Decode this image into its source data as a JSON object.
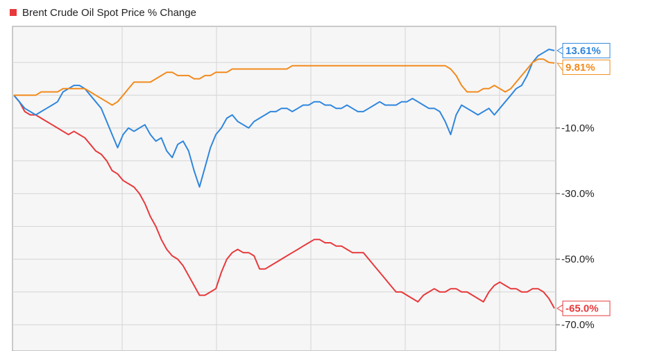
{
  "legend": [
    {
      "label": "Brent Crude Oil Spot Price % Change",
      "color": "#e8383b"
    }
  ],
  "chart_data": {
    "type": "line",
    "ylim": [
      -78,
      21
    ],
    "y_ticks": [
      -10,
      -30,
      -50,
      -70
    ],
    "y_tick_labels": [
      "-10.0%",
      "-30.0%",
      "-50.0%",
      "-70.0%"
    ],
    "grid": true,
    "legend_position": "top-left",
    "x_count": 100,
    "series": [
      {
        "name": "Brent Crude Oil Spot Price % Change",
        "color": "#e8383b",
        "end_label": "-65.0%",
        "values": [
          0,
          -2,
          -5,
          -6,
          -6,
          -7,
          -8,
          -9,
          -10,
          -11,
          -12,
          -11,
          -12,
          -13,
          -15,
          -17,
          -18,
          -20,
          -23,
          -24,
          -26,
          -27,
          -28,
          -30,
          -33,
          -37,
          -40,
          -44,
          -47,
          -49,
          -50,
          -52,
          -55,
          -58,
          -61,
          -61,
          -60,
          -59,
          -54,
          -50,
          -48,
          -47,
          -48,
          -48,
          -49,
          -53,
          -53,
          -52,
          -51,
          -50,
          -49,
          -48,
          -47,
          -46,
          -45,
          -44,
          -44,
          -45,
          -45,
          -46,
          -46,
          -47,
          -48,
          -48,
          -48,
          -50,
          -52,
          -54,
          -56,
          -58,
          -60,
          -60,
          -61,
          -62,
          -63,
          -61,
          -60,
          -59,
          -60,
          -60,
          -59,
          -59,
          -60,
          -60,
          -61,
          -62,
          -63,
          -60,
          -58,
          -57,
          -58,
          -59,
          -59,
          -60,
          -60,
          -59,
          -59,
          -60,
          -62,
          -65
        ]
      },
      {
        "name": "",
        "color": "#2e86de",
        "end_label": "13.61%",
        "values": [
          0,
          -2,
          -4,
          -5,
          -6,
          -5,
          -4,
          -3,
          -2,
          1,
          2,
          3,
          3,
          2,
          0,
          -2,
          -4,
          -8,
          -12,
          -16,
          -12,
          -10,
          -11,
          -10,
          -9,
          -12,
          -14,
          -13,
          -17,
          -19,
          -15,
          -14,
          -17,
          -23,
          -28,
          -22,
          -16,
          -12,
          -10,
          -7,
          -6,
          -8,
          -9,
          -10,
          -8,
          -7,
          -6,
          -5,
          -5,
          -4,
          -4,
          -5,
          -4,
          -3,
          -3,
          -2,
          -2,
          -3,
          -3,
          -4,
          -4,
          -3,
          -4,
          -5,
          -5,
          -4,
          -3,
          -2,
          -3,
          -3,
          -3,
          -2,
          -2,
          -1,
          -2,
          -3,
          -4,
          -4,
          -5,
          -8,
          -12,
          -6,
          -3,
          -4,
          -5,
          -6,
          -5,
          -4,
          -6,
          -4,
          -2,
          0,
          2,
          3,
          6,
          10,
          12,
          13,
          14,
          13.61
        ]
      },
      {
        "name": "",
        "color": "#f28a1c",
        "end_label": "9.81%",
        "values": [
          0,
          0,
          0,
          0,
          0,
          1,
          1,
          1,
          1,
          2,
          2,
          2,
          2,
          2,
          1,
          0,
          -1,
          -2,
          -3,
          -2,
          0,
          2,
          4,
          4,
          4,
          4,
          5,
          6,
          7,
          7,
          6,
          6,
          6,
          5,
          5,
          6,
          6,
          7,
          7,
          7,
          8,
          8,
          8,
          8,
          8,
          8,
          8,
          8,
          8,
          8,
          8,
          9,
          9,
          9,
          9,
          9,
          9,
          9,
          9,
          9,
          9,
          9,
          9,
          9,
          9,
          9,
          9,
          9,
          9,
          9,
          9,
          9,
          9,
          9,
          9,
          9,
          9,
          9,
          9,
          9,
          8,
          6,
          3,
          1,
          1,
          1,
          2,
          2,
          3,
          2,
          1,
          2,
          4,
          6,
          8,
          10,
          11,
          11,
          10,
          9.81
        ]
      }
    ]
  }
}
